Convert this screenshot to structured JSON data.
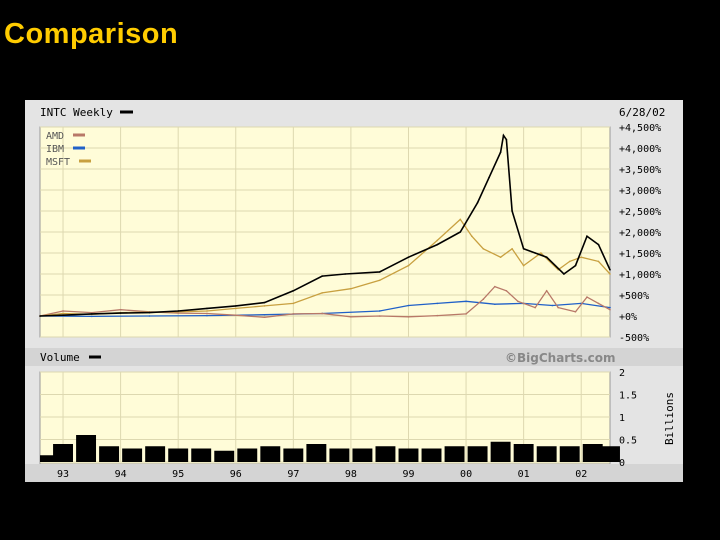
{
  "slide": {
    "title": "Comparison"
  },
  "chart_data": [
    {
      "type": "line",
      "title": "INTC Weekly",
      "date": "6/28/02",
      "y_tick_labels": [
        "+4,500%",
        "+4,000%",
        "+3,500%",
        "+3,000%",
        "+2,500%",
        "+2,000%",
        "+1,500%",
        "+1,000%",
        "+500%",
        "+0%",
        "-500%"
      ],
      "ylim": [
        -500,
        4500
      ],
      "x_tick_labels": [
        "93",
        "94",
        "95",
        "96",
        "97",
        "98",
        "99",
        "00",
        "01",
        "02"
      ],
      "xlim": [
        1992.6,
        2002.5
      ],
      "legend_position": "top-left",
      "grid": true,
      "series": [
        {
          "name": "INTC Weekly",
          "color": "#000000",
          "x": [
            1992.6,
            1993.0,
            1993.5,
            1994.0,
            1994.5,
            1995.0,
            1995.5,
            1996.0,
            1996.5,
            1997.0,
            1997.5,
            1997.9,
            1998.5,
            1999.0,
            1999.5,
            1999.9,
            2000.2,
            2000.4,
            2000.6,
            2000.65,
            2000.7,
            2000.8,
            2001.0,
            2001.2,
            2001.4,
            2001.7,
            2001.9,
            2002.1,
            2002.3,
            2002.5
          ],
          "values": [
            0,
            20,
            50,
            70,
            80,
            120,
            180,
            240,
            320,
            600,
            950,
            1000,
            1050,
            1400,
            1700,
            2000,
            2700,
            3300,
            3900,
            4300,
            4200,
            2500,
            1600,
            1500,
            1400,
            1000,
            1200,
            1900,
            1700,
            1100
          ]
        },
        {
          "name": "AMD",
          "color": "#b87868",
          "x": [
            1992.6,
            1993.0,
            1993.5,
            1994.0,
            1994.5,
            1995.0,
            1995.5,
            1996.0,
            1996.5,
            1997.0,
            1997.5,
            1998.0,
            1998.5,
            1999.0,
            1999.5,
            2000.0,
            2000.3,
            2000.5,
            2000.7,
            2000.9,
            2001.2,
            2001.4,
            2001.6,
            2001.9,
            2002.1,
            2002.3,
            2002.5
          ],
          "values": [
            0,
            120,
            80,
            150,
            100,
            70,
            60,
            20,
            -30,
            50,
            60,
            -20,
            0,
            -20,
            10,
            50,
            400,
            700,
            600,
            350,
            200,
            600,
            200,
            100,
            450,
            300,
            150
          ]
        },
        {
          "name": "IBM",
          "color": "#2060c8",
          "x": [
            1992.6,
            1993.5,
            1994.5,
            1995.5,
            1996.5,
            1997.5,
            1998.5,
            1999.0,
            1999.5,
            2000.0,
            2000.5,
            2001.0,
            2001.5,
            2002.0,
            2002.5
          ],
          "values": [
            0,
            -10,
            0,
            10,
            30,
            60,
            120,
            250,
            300,
            350,
            280,
            300,
            250,
            300,
            200
          ]
        },
        {
          "name": "MSFT",
          "color": "#c8a040",
          "x": [
            1992.6,
            1993.0,
            1993.5,
            1994.0,
            1994.5,
            1995.0,
            1995.5,
            1996.0,
            1996.5,
            1997.0,
            1997.5,
            1998.0,
            1998.5,
            1999.0,
            1999.5,
            1999.9,
            2000.1,
            2000.3,
            2000.6,
            2000.8,
            2001.0,
            2001.3,
            2001.6,
            2001.8,
            2002.0,
            2002.3,
            2002.5
          ],
          "values": [
            0,
            60,
            40,
            80,
            90,
            100,
            120,
            180,
            240,
            300,
            550,
            650,
            850,
            1200,
            1800,
            2300,
            1900,
            1600,
            1400,
            1600,
            1200,
            1500,
            1100,
            1300,
            1400,
            1300,
            1000
          ]
        }
      ]
    },
    {
      "type": "bar",
      "title": "Volume",
      "ylabel": "Billions",
      "y_tick_labels": [
        "2",
        "1.5",
        "1",
        "0.5",
        "0"
      ],
      "ylim": [
        0,
        2
      ],
      "x_tick_labels": [
        "93",
        "94",
        "95",
        "96",
        "97",
        "98",
        "99",
        "00",
        "01",
        "02"
      ],
      "xlim": [
        1992.6,
        2002.5
      ],
      "series": [
        {
          "name": "Volume",
          "color": "#000000",
          "x": [
            1992.6,
            1993.0,
            1993.4,
            1993.8,
            1994.2,
            1994.6,
            1995.0,
            1995.4,
            1995.8,
            1996.2,
            1996.6,
            1997.0,
            1997.4,
            1997.8,
            1998.2,
            1998.6,
            1999.0,
            1999.4,
            1999.8,
            2000.2,
            2000.6,
            2001.0,
            2001.4,
            2001.8,
            2002.2,
            2002.5
          ],
          "values": [
            0.15,
            0.4,
            0.6,
            0.35,
            0.3,
            0.35,
            0.3,
            0.3,
            0.25,
            0.3,
            0.35,
            0.3,
            0.4,
            0.3,
            0.3,
            0.35,
            0.3,
            0.3,
            0.35,
            0.35,
            0.45,
            0.4,
            0.35,
            0.35,
            0.4,
            0.35
          ]
        }
      ],
      "annotations": [
        "©BigCharts.com"
      ]
    }
  ]
}
